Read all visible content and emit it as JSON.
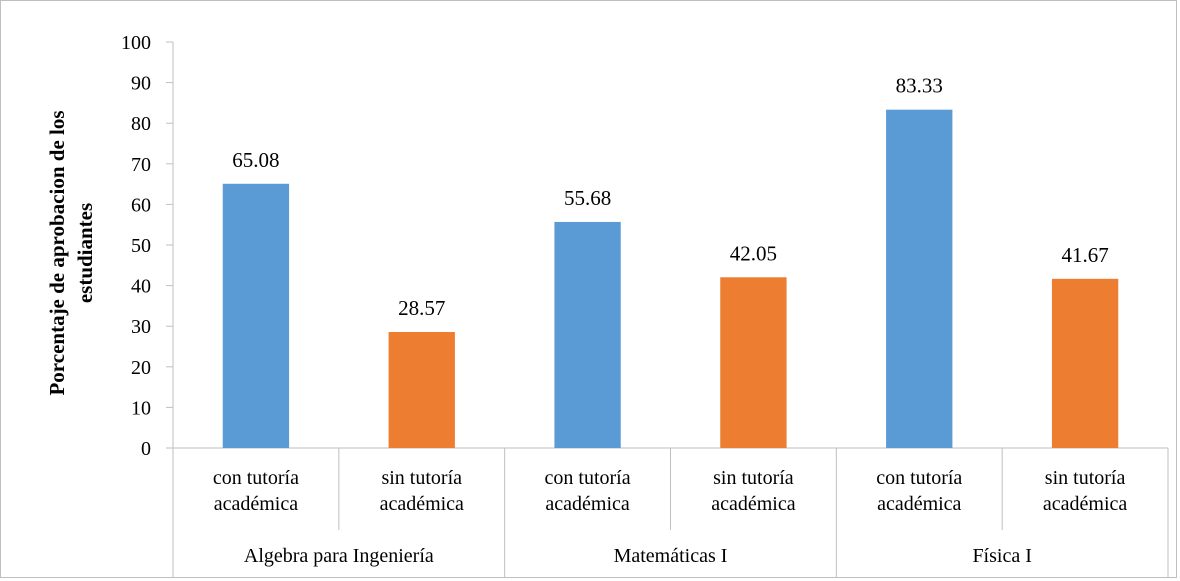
{
  "chart_data": {
    "type": "bar",
    "ylabel_lines": [
      "Porcentaje de aprobacion de los",
      "estudiantes"
    ],
    "xlabel": "",
    "ylim": [
      0,
      100
    ],
    "y_ticks": [
      0,
      10,
      20,
      30,
      40,
      50,
      60,
      70,
      80,
      90,
      100
    ],
    "grid": false,
    "groups": [
      {
        "name": "Algebra para Ingeniería",
        "bars": [
          {
            "label_lines": [
              "con tutoría",
              "académica"
            ],
            "value": 65.08,
            "value_label": "65.08",
            "color": "#5b9bd5"
          },
          {
            "label_lines": [
              "sin tutoría",
              "académica"
            ],
            "value": 28.57,
            "value_label": "28.57",
            "color": "#ed7d31"
          }
        ]
      },
      {
        "name": "Matemáticas I",
        "bars": [
          {
            "label_lines": [
              "con tutoría",
              "académica"
            ],
            "value": 55.68,
            "value_label": "55.68",
            "color": "#5b9bd5"
          },
          {
            "label_lines": [
              "sin tutoría",
              "académica"
            ],
            "value": 42.05,
            "value_label": "42.05",
            "color": "#ed7d31"
          }
        ]
      },
      {
        "name": "Física I",
        "bars": [
          {
            "label_lines": [
              "con tutoría",
              "académica"
            ],
            "value": 83.33,
            "value_label": "83.33",
            "color": "#5b9bd5"
          },
          {
            "label_lines": [
              "sin tutoría",
              "académica"
            ],
            "value": 41.67,
            "value_label": "41.67",
            "color": "#ed7d31"
          }
        ]
      }
    ]
  }
}
